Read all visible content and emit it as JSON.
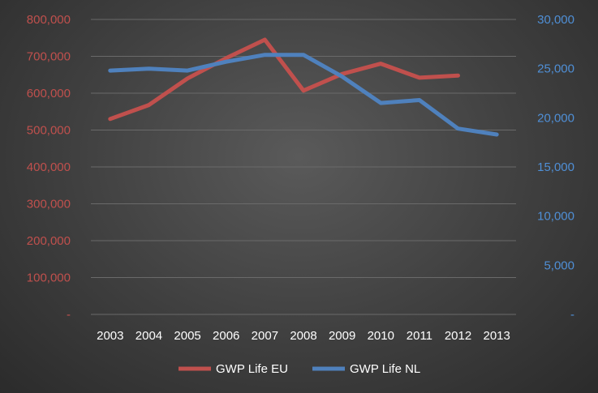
{
  "chart_data": {
    "type": "line",
    "title": "",
    "xlabel": "",
    "ylabel": "",
    "categories": [
      "2003",
      "2004",
      "2005",
      "2006",
      "2007",
      "2008",
      "2009",
      "2010",
      "2011",
      "2012",
      "2013"
    ],
    "series": [
      {
        "name": "GWP Life EU",
        "axis": "left",
        "color": "#c0504d",
        "values": [
          530000,
          568000,
          640000,
          695000,
          745000,
          607000,
          652000,
          680000,
          642000,
          648000,
          null
        ]
      },
      {
        "name": "GWP Life NL",
        "axis": "right",
        "color": "#4f81bd",
        "values": [
          24800,
          25000,
          24800,
          25700,
          26400,
          26400,
          24200,
          21500,
          21800,
          18900,
          18300
        ]
      }
    ],
    "ylim_left": [
      0,
      800000
    ],
    "ylim_right": [
      0,
      30000
    ],
    "yticks_left": [
      "-",
      "100,000",
      "200,000",
      "300,000",
      "400,000",
      "500,000",
      "600,000",
      "700,000",
      "800,000"
    ],
    "yticks_right": [
      "-",
      "5,000",
      "10,000",
      "15,000",
      "20,000",
      "25,000",
      "30,000"
    ],
    "grid": true,
    "legend_position": "bottom"
  }
}
